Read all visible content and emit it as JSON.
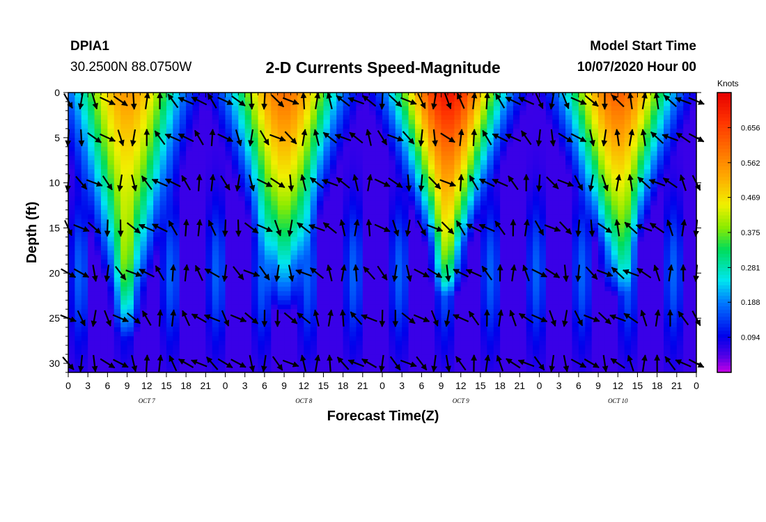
{
  "header": {
    "station": "DPIA1",
    "coords": "30.2500N 88.0750W",
    "title": "2-D Currents Speed-Magnitude",
    "model_start_label": "Model Start Time",
    "model_start_value": "10/07/2020 Hour 00"
  },
  "chart_data": {
    "type": "heatmap",
    "title": "2-D Currents Speed-Magnitude",
    "xlabel": "Forecast Time(Z)",
    "ylabel": "Depth (ft)",
    "x_range_hours": [
      0,
      96
    ],
    "y_range_ft": [
      0,
      31
    ],
    "x_tick_labels": [
      "0",
      "3",
      "6",
      "9",
      "12",
      "15",
      "18",
      "21",
      "0",
      "3",
      "6",
      "9",
      "12",
      "15",
      "18",
      "21",
      "0",
      "3",
      "6",
      "9",
      "12",
      "15",
      "18",
      "21",
      "0",
      "3",
      "6",
      "9",
      "12",
      "15",
      "18",
      "21",
      "0"
    ],
    "y_ticks": [
      0,
      5,
      10,
      15,
      20,
      25,
      30
    ],
    "day_labels": [
      {
        "label": "OCT 7",
        "hour": 12
      },
      {
        "label": "OCT 8",
        "hour": 36
      },
      {
        "label": "OCT 9",
        "hour": 60
      },
      {
        "label": "OCT 10",
        "hour": 84
      }
    ],
    "colorbar": {
      "units": "Knots",
      "range": [
        0.0,
        0.75
      ],
      "tick_values": [
        0.094,
        0.188,
        0.281,
        0.375,
        0.469,
        0.562,
        0.656
      ],
      "tick_labels": [
        "0.094",
        "0.188",
        "0.281",
        "0.375",
        "0.469",
        "0.562",
        "0.656"
      ]
    },
    "speed_peaks": [
      {
        "hour": 9,
        "max_knots": 0.55,
        "reach_depth_ft": 22
      },
      {
        "hour": 33,
        "max_knots": 0.6,
        "reach_depth_ft": 19
      },
      {
        "hour": 58,
        "max_knots": 0.72,
        "reach_depth_ft": 17
      },
      {
        "hour": 84,
        "max_knots": 0.62,
        "reach_depth_ft": 17
      }
    ],
    "speed_minima_hours": [
      20,
      44,
      68,
      92
    ],
    "vector_grid": {
      "x_step_hours": 2,
      "depth_levels_ft": [
        0,
        5,
        10,
        15,
        20,
        25,
        30
      ]
    }
  }
}
